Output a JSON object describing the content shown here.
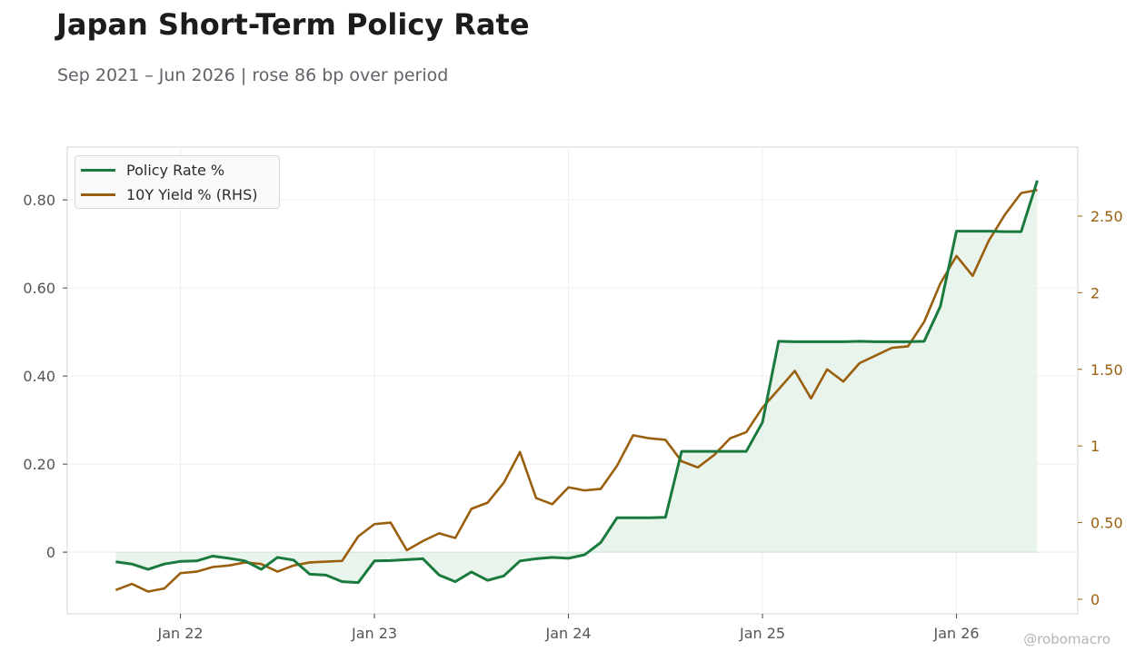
{
  "title": "Japan Short-Term Policy Rate",
  "subtitle": "Sep 2021 – Jun 2026 | rose 86 bp over period",
  "watermark": "@robomacro",
  "colors": {
    "policy": "#1a7a3e",
    "yield": "#9a5f0d",
    "fill": "#e4f1e8",
    "grid": "#eeeeee",
    "axis": "#d4d4d4",
    "tick": "#555555"
  },
  "chart_data": {
    "type": "line",
    "x_start": "2021-09",
    "x_end": "2026-06",
    "x_ticks": [
      "Jan 22",
      "Jan 23",
      "Jan 24",
      "Jan 25",
      "Jan 26"
    ],
    "y_left": {
      "ticks": [
        0,
        0.2,
        0.4,
        0.6,
        0.8
      ],
      "tick_labels": [
        "0",
        "0.20",
        "0.40",
        "0.60",
        "0.80"
      ],
      "range": [
        -0.14,
        0.92
      ]
    },
    "y_right": {
      "ticks": [
        0,
        0.5,
        1,
        1.5,
        2,
        2.5
      ],
      "tick_labels": [
        "0",
        "0.50",
        "1",
        "1.50",
        "2",
        "2.50"
      ],
      "range": [
        -0.095,
        2.95
      ]
    },
    "grid": true,
    "legend_position": "top-left",
    "series": [
      {
        "name": "Policy Rate %",
        "axis": "left",
        "values": [
          -0.022,
          -0.027,
          -0.039,
          -0.027,
          -0.021,
          -0.02,
          -0.009,
          -0.014,
          -0.02,
          -0.039,
          -0.012,
          -0.018,
          -0.05,
          -0.052,
          -0.067,
          -0.069,
          -0.02,
          -0.019,
          -0.017,
          -0.015,
          -0.052,
          -0.067,
          -0.045,
          -0.064,
          -0.054,
          -0.02,
          -0.015,
          -0.012,
          -0.014,
          -0.006,
          0.022,
          0.078,
          0.078,
          0.078,
          0.079,
          0.229,
          0.229,
          0.229,
          0.229,
          0.229,
          0.295,
          0.479,
          0.478,
          0.478,
          0.478,
          0.478,
          0.479,
          0.478,
          0.478,
          0.478,
          0.479,
          0.558,
          0.729,
          0.729,
          0.729,
          0.728,
          0.728,
          0.844
        ]
      },
      {
        "name": "10Y Yield % (RHS)",
        "axis": "right",
        "values": [
          0.06,
          0.1,
          0.05,
          0.07,
          0.17,
          0.18,
          0.21,
          0.22,
          0.24,
          0.23,
          0.18,
          0.22,
          0.24,
          0.245,
          0.25,
          0.41,
          0.49,
          0.5,
          0.32,
          0.38,
          0.43,
          0.4,
          0.59,
          0.63,
          0.76,
          0.96,
          0.66,
          0.62,
          0.73,
          0.71,
          0.72,
          0.87,
          1.07,
          1.05,
          1.04,
          0.9,
          0.86,
          0.94,
          1.05,
          1.09,
          1.25,
          1.37,
          1.49,
          1.31,
          1.5,
          1.42,
          1.54,
          1.59,
          1.64,
          1.65,
          1.81,
          2.06,
          2.24,
          2.11,
          2.34,
          2.51,
          2.65,
          2.67
        ]
      }
    ]
  }
}
